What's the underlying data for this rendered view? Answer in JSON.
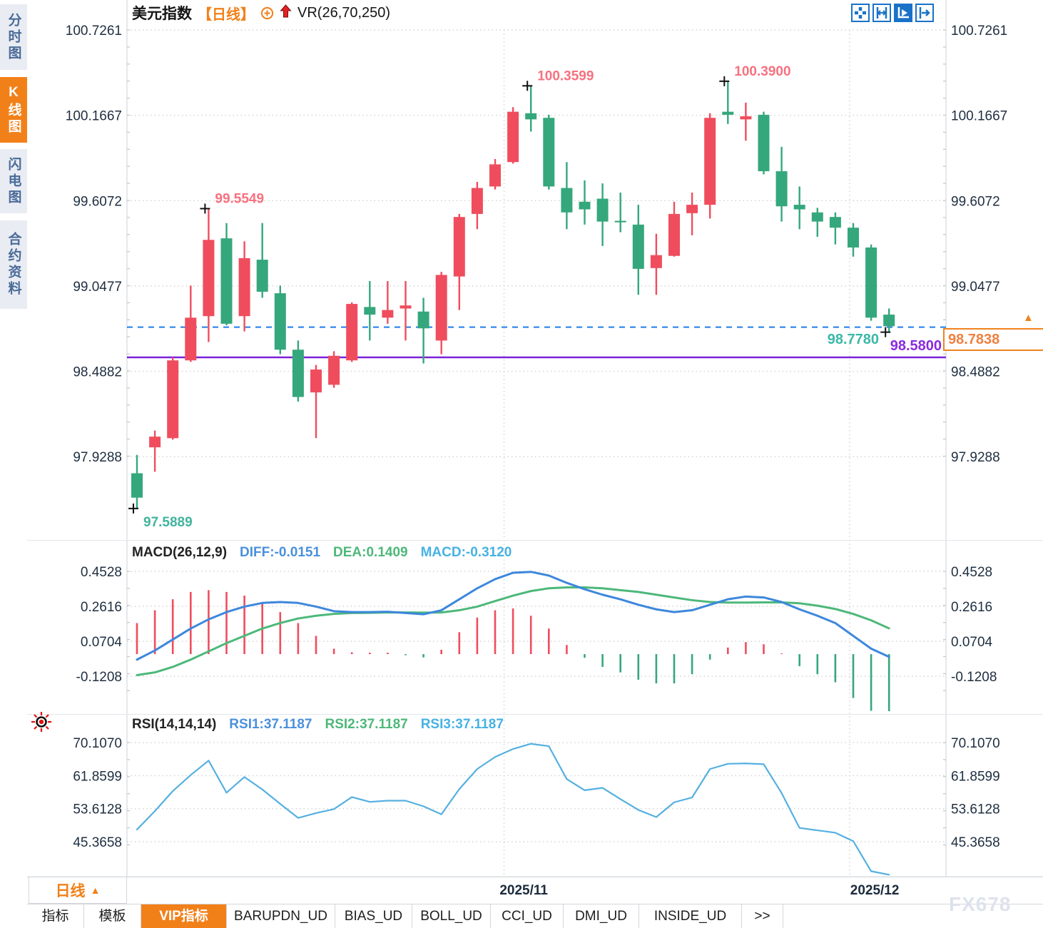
{
  "header": {
    "symbol": "美元指数",
    "period_tag": "【日线】",
    "indicator": "VR(26,70,250)"
  },
  "toolbar": {
    "icons": [
      {
        "name": "crosshair-move-icon",
        "active": false
      },
      {
        "name": "fit-y-axis-icon",
        "active": false
      },
      {
        "name": "auto-scale-icon",
        "active": true
      },
      {
        "name": "scroll-to-latest-icon",
        "active": false
      }
    ]
  },
  "sidebar": {
    "items": [
      {
        "label": "分时图",
        "active": false
      },
      {
        "label": "K线图",
        "active": true
      },
      {
        "label": "闪电图",
        "active": false
      },
      {
        "label": "合约资料",
        "active": false
      }
    ]
  },
  "price_box": {
    "value": "98.7838"
  },
  "levels": {
    "last_close": "98.7780",
    "purple_level": "98.5800"
  },
  "macd_header": {
    "title": "MACD(26,12,9)",
    "diff": "DIFF:-0.0151",
    "dea": "DEA:0.1409",
    "macd": "MACD:-0.3120"
  },
  "rsi_header": {
    "title": "RSI(14,14,14)",
    "rsi1": "RSI1:37.1187",
    "rsi2": "RSI2:37.1187",
    "rsi3": "RSI3:37.1187"
  },
  "period_selector": {
    "label": "日线",
    "arrow": "▲"
  },
  "bottom_tabs": [
    {
      "label": "指标",
      "active": false
    },
    {
      "label": "模板",
      "active": false
    },
    {
      "label": "VIP指标",
      "active": true
    },
    {
      "label": "BARUPDN_UD",
      "active": false
    },
    {
      "label": "BIAS_UD",
      "active": false
    },
    {
      "label": "BOLL_UD",
      "active": false
    },
    {
      "label": "CCI_UD",
      "active": false
    },
    {
      "label": "DMI_UD",
      "active": false
    },
    {
      "label": "INSIDE_UD",
      "active": false
    },
    {
      "label": ">>",
      "active": false
    }
  ],
  "watermark": "FX678",
  "colors": {
    "up": "#ef4d5d",
    "down": "#35a77c",
    "accent_orange": "#f28019",
    "diff_blue": "#3d87dc",
    "dea_green": "#4db87a",
    "macd_lightblue": "#47b2e3",
    "rsi_blue": "#55b0e0",
    "dashed_line": "#1f7de9",
    "purple_line": "#7b22d8",
    "annotation_pink": "#f7717f",
    "annotation_teal": "#42b39e",
    "grid": "#d4d4d4",
    "axis_text": "#1e2e40",
    "icon_blue": "#1a72c8"
  },
  "chart_data": [
    {
      "type": "candlestick",
      "title": "美元指数 日线",
      "ylabel": "price",
      "grid": true,
      "y_ticks": [
        "100.7261",
        "100.1667",
        "99.6072",
        "99.0477",
        "98.4882",
        "97.9288"
      ],
      "y_tick_values": [
        100.7261,
        100.1667,
        99.6072,
        99.0477,
        98.4882,
        97.9288
      ],
      "x_axis": {
        "months": [
          {
            "label": "2025/11",
            "grid_index": 20.5,
            "label_index": 21.6
          },
          {
            "label": "2025/12",
            "grid_index": 39.8,
            "label_index": 41.2
          }
        ]
      },
      "candles": [
        [
          97.82,
          97.94,
          97.589,
          97.66
        ],
        [
          97.99,
          98.1,
          97.83,
          98.06
        ],
        [
          98.05,
          98.58,
          98.04,
          98.56
        ],
        [
          98.56,
          99.05,
          98.55,
          98.84
        ],
        [
          98.85,
          99.5549,
          98.68,
          99.35
        ],
        [
          99.36,
          99.46,
          98.79,
          98.8
        ],
        [
          98.85,
          99.34,
          98.75,
          99.23
        ],
        [
          99.22,
          99.46,
          98.97,
          99.01
        ],
        [
          99.0,
          99.05,
          98.6,
          98.63
        ],
        [
          98.63,
          98.69,
          98.29,
          98.32
        ],
        [
          98.35,
          98.53,
          98.05,
          98.5
        ],
        [
          98.4,
          98.62,
          98.38,
          98.59
        ],
        [
          98.56,
          98.94,
          98.55,
          98.93
        ],
        [
          98.91,
          99.08,
          98.69,
          98.86
        ],
        [
          98.84,
          99.08,
          98.8,
          98.89
        ],
        [
          98.9,
          99.08,
          98.69,
          98.92
        ],
        [
          98.88,
          98.97,
          98.54,
          98.77
        ],
        [
          98.69,
          99.14,
          98.6,
          99.12
        ],
        [
          99.11,
          99.52,
          98.89,
          99.5
        ],
        [
          99.52,
          99.73,
          99.42,
          99.69
        ],
        [
          99.7,
          99.88,
          99.68,
          99.845
        ],
        [
          99.86,
          100.22,
          99.85,
          100.19
        ],
        [
          100.18,
          100.3599,
          100.06,
          100.14
        ],
        [
          100.15,
          100.17,
          99.68,
          99.7
        ],
        [
          99.69,
          99.86,
          99.42,
          99.53
        ],
        [
          99.6,
          99.74,
          99.45,
          99.55
        ],
        [
          99.62,
          99.72,
          99.31,
          99.47
        ],
        [
          99.475,
          99.66,
          99.4,
          99.465
        ],
        [
          99.45,
          99.58,
          98.99,
          99.16
        ],
        [
          99.165,
          99.39,
          98.99,
          99.25
        ],
        [
          99.245,
          99.6,
          99.24,
          99.52
        ],
        [
          99.525,
          99.66,
          99.38,
          99.58
        ],
        [
          99.58,
          100.18,
          99.49,
          100.15
        ],
        [
          100.19,
          100.39,
          100.11,
          100.17
        ],
        [
          100.14,
          100.25,
          100.0,
          100.16
        ],
        [
          100.17,
          100.19,
          99.78,
          99.8
        ],
        [
          99.8,
          99.96,
          99.47,
          99.57
        ],
        [
          99.58,
          99.7,
          99.42,
          99.55
        ],
        [
          99.53,
          99.56,
          99.37,
          99.47
        ],
        [
          99.5,
          99.53,
          99.32,
          99.43
        ],
        [
          99.43,
          99.46,
          99.24,
          99.3
        ],
        [
          99.3,
          99.32,
          98.82,
          98.84
        ],
        [
          98.86,
          98.9,
          98.745,
          98.7838
        ]
      ],
      "annotations": [
        {
          "candle": 0,
          "anchor": "low",
          "label": "97.5889",
          "color": "#42b39e"
        },
        {
          "candle": 4,
          "anchor": "high",
          "label": "99.5549",
          "color": "#f7717f"
        },
        {
          "candle": 22,
          "anchor": "high",
          "label": "100.3599",
          "color": "#f7717f"
        },
        {
          "candle": 33,
          "anchor": "high",
          "label": "100.3900",
          "color": "#f7717f"
        },
        {
          "candle": 42,
          "anchor": "low",
          "label": "",
          "color": "#111111"
        }
      ],
      "hlines": [
        {
          "value": 98.778,
          "color": "#1f7de9",
          "dash": "8 7",
          "width": 2
        },
        {
          "value": 98.58,
          "color": "#7b22d8",
          "dash": "",
          "width": 2.5
        }
      ],
      "last_price": 98.7838
    },
    {
      "type": "bar",
      "title": "MACD(26,12,9)",
      "y_ticks": [
        "0.4528",
        "0.2616",
        "0.0704",
        "-0.1208"
      ],
      "y_tick_values": [
        0.4528,
        0.2616,
        0.0704,
        -0.1208
      ],
      "histogram_rule": "2*(DIFF-DEA)",
      "series": [
        {
          "name": "DIFF",
          "values": [
            -0.03,
            0.02,
            0.08,
            0.14,
            0.19,
            0.23,
            0.26,
            0.28,
            0.285,
            0.28,
            0.26,
            0.235,
            0.23,
            0.23,
            0.232,
            0.225,
            0.218,
            0.24,
            0.3,
            0.36,
            0.41,
            0.445,
            0.45,
            0.43,
            0.39,
            0.355,
            0.325,
            0.3,
            0.27,
            0.245,
            0.23,
            0.24,
            0.27,
            0.3,
            0.315,
            0.31,
            0.285,
            0.245,
            0.21,
            0.17,
            0.1,
            0.03,
            -0.0151
          ]
        },
        {
          "name": "DEA",
          "values": [
            -0.115,
            -0.1,
            -0.07,
            -0.03,
            0.015,
            0.06,
            0.1,
            0.14,
            0.17,
            0.195,
            0.21,
            0.22,
            0.225,
            0.226,
            0.228,
            0.228,
            0.227,
            0.228,
            0.24,
            0.26,
            0.29,
            0.32,
            0.345,
            0.36,
            0.365,
            0.365,
            0.36,
            0.35,
            0.34,
            0.325,
            0.31,
            0.295,
            0.285,
            0.282,
            0.282,
            0.283,
            0.283,
            0.278,
            0.265,
            0.247,
            0.22,
            0.185,
            0.1409
          ]
        }
      ]
    },
    {
      "type": "line",
      "title": "RSI(14,14,14)",
      "y_ticks": [
        "70.1070",
        "61.8599",
        "53.6128",
        "45.3658"
      ],
      "y_tick_values": [
        70.107,
        61.8599,
        53.6128,
        45.3658
      ],
      "series": [
        {
          "name": "RSI1",
          "values": [
            48.4,
            53.0,
            58.0,
            62.0,
            65.6,
            57.6,
            61.5,
            58.4,
            54.8,
            51.3,
            52.5,
            53.5,
            56.5,
            55.3,
            55.6,
            55.6,
            54.2,
            52.2,
            58.5,
            63.5,
            66.5,
            68.5,
            69.8,
            69.2,
            61.0,
            58.2,
            58.8,
            56.0,
            53.3,
            51.5,
            55.2,
            56.4,
            63.5,
            64.8,
            64.9,
            64.7,
            57.5,
            48.8,
            48.2,
            47.6,
            45.5,
            38.0,
            37.1187
          ]
        }
      ]
    }
  ]
}
